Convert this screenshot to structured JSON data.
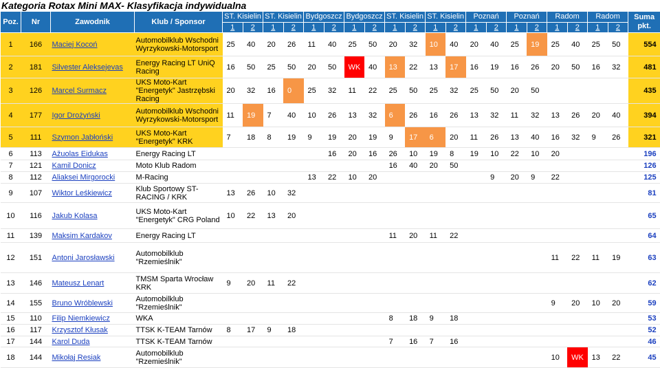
{
  "title": "Kategoria Rotax Mini MAX- Klasyfikacja indywidualna",
  "colors": {
    "header": "#1f6fb5",
    "leader": "#ffd21f",
    "orange": "#f79646",
    "red": "#ff0000",
    "link": "#1a3fbf"
  },
  "header": {
    "poz": "Poz.",
    "nr": "Nr",
    "name": "Zawodnik",
    "club": "Klub / Sponsor",
    "total": "Suma pkt.",
    "races": [
      "ST. Kisielin",
      "ST. Kisielin",
      "Bydgoszcz",
      "Bydgoszcz",
      "ST. Kisielin",
      "ST. Kisielin",
      "Poznań",
      "Poznań",
      "Radom",
      "Radom"
    ],
    "heats": [
      1,
      2,
      1,
      2,
      1,
      2,
      1,
      2,
      1,
      2,
      1,
      2,
      1,
      2,
      1,
      2,
      1,
      2,
      1,
      2
    ]
  },
  "rows": [
    {
      "poz": 1,
      "nr": 166,
      "name": "Maciej Kocoń",
      "club": "Automobilklub Wschodni Wyrzykowski-Motorsport",
      "bg": "#ffd21f",
      "results": [
        25,
        40,
        20,
        26,
        11,
        40,
        25,
        50,
        20,
        32,
        10,
        40,
        20,
        40,
        25,
        19,
        25,
        40,
        25,
        50
      ],
      "orange": [
        10,
        15
      ],
      "red": [],
      "total": 554
    },
    {
      "poz": 2,
      "nr": 181,
      "name": "Silvester Aleksejevas",
      "club": "Energy Racing LT UniQ Racing",
      "bg": "#ffd21f",
      "results": [
        16,
        50,
        25,
        50,
        20,
        50,
        "WK",
        40,
        13,
        22,
        13,
        17,
        16,
        19,
        16,
        26,
        20,
        50,
        16,
        32
      ],
      "orange": [
        8,
        11
      ],
      "red": [
        6
      ],
      "total": 481
    },
    {
      "poz": 3,
      "nr": 126,
      "name": "Marcel Surmacz",
      "club": "UKS Moto-Kart \"Energetyk\" Jastrzębski Racing",
      "bg": "#ffd21f",
      "results": [
        20,
        32,
        16,
        0,
        25,
        32,
        11,
        22,
        25,
        50,
        25,
        32,
        25,
        50,
        20,
        50,
        null,
        null,
        null,
        null
      ],
      "orange": [
        3
      ],
      "red": [],
      "total": 435
    },
    {
      "poz": 4,
      "nr": 177,
      "name": "Igor Drożyński",
      "club": "Automobilklub Wschodni Wyrzykowski-Motorsport",
      "bg": "#ffd21f",
      "results": [
        11,
        19,
        7,
        40,
        10,
        26,
        13,
        32,
        6,
        26,
        16,
        26,
        13,
        32,
        11,
        32,
        13,
        26,
        20,
        40
      ],
      "orange": [
        1,
        8
      ],
      "red": [],
      "total": 394
    },
    {
      "poz": 5,
      "nr": 111,
      "name": "Szymon Jabłoński",
      "club": "UKS Moto-Kart \"Energetyk\" KRK",
      "bg": "#ffd21f",
      "results": [
        7,
        18,
        8,
        19,
        9,
        19,
        20,
        19,
        9,
        17,
        6,
        20,
        11,
        26,
        13,
        40,
        16,
        32,
        9,
        26
      ],
      "orange": [
        9,
        10
      ],
      "red": [],
      "total": 321
    },
    {
      "poz": 6,
      "nr": 113,
      "name": "Ažuolas Eidukas",
      "club": "Energy Racing LT",
      "results": [
        null,
        null,
        null,
        null,
        null,
        16,
        20,
        16,
        26,
        10,
        19,
        8,
        19,
        10,
        22,
        10,
        20,
        null,
        null,
        null
      ],
      "orange": [],
      "red": [],
      "total": 196
    },
    {
      "poz": 7,
      "nr": 121,
      "name": "Kamil Donicz",
      "club": "Moto Klub Radom",
      "results": [
        null,
        null,
        null,
        null,
        null,
        null,
        null,
        null,
        16,
        40,
        20,
        50,
        null,
        null,
        null,
        null,
        null,
        null,
        null,
        null
      ],
      "orange": [],
      "red": [],
      "total": 126
    },
    {
      "poz": 8,
      "nr": 112,
      "name": "Aliaksei Mirgorocki",
      "club": "M-Racing",
      "results": [
        null,
        null,
        null,
        null,
        13,
        22,
        10,
        20,
        null,
        null,
        null,
        null,
        null,
        9,
        20,
        9,
        22,
        null,
        null,
        null
      ],
      "orange": [],
      "red": [],
      "total": 125
    },
    {
      "poz": 9,
      "nr": 107,
      "name": "Wiktor Leśkiewicz",
      "club": "Klub Sportowy ST-RACING / KRK",
      "results": [
        13,
        26,
        10,
        32,
        null,
        null,
        null,
        null,
        null,
        null,
        null,
        null,
        null,
        null,
        null,
        null,
        null,
        null,
        null,
        null
      ],
      "orange": [],
      "red": [],
      "total": 81
    },
    {
      "poz": 10,
      "nr": 116,
      "name": "Jakub Kolasa",
      "club": "UKS Moto-Kart \"Energetyk\" CRG Poland",
      "results": [
        10,
        22,
        13,
        20,
        null,
        null,
        null,
        null,
        null,
        null,
        null,
        null,
        null,
        null,
        null,
        null,
        null,
        null,
        null,
        null
      ],
      "orange": [],
      "red": [],
      "total": 65
    },
    {
      "poz": 11,
      "nr": 139,
      "name": "Maksim Kardakov",
      "club": "Energy Racing LT",
      "results": [
        null,
        null,
        null,
        null,
        null,
        null,
        null,
        null,
        11,
        20,
        11,
        22,
        null,
        null,
        null,
        null,
        null,
        null,
        null,
        null
      ],
      "orange": [],
      "red": [],
      "total": 64
    },
    {
      "poz": 12,
      "nr": 151,
      "name": "Antoni Jarosławski",
      "club": "Automobilklub \"Rzemieślnik\"",
      "results": [
        null,
        null,
        null,
        null,
        null,
        null,
        null,
        null,
        null,
        null,
        null,
        null,
        null,
        null,
        null,
        null,
        11,
        22,
        11,
        19
      ],
      "orange": [],
      "red": [],
      "total": 63
    },
    {
      "poz": 13,
      "nr": 146,
      "name": "Mateusz Lenart",
      "club": "TMSM Sparta Wrocław KRK",
      "results": [
        9,
        20,
        11,
        22,
        null,
        null,
        null,
        null,
        null,
        null,
        null,
        null,
        null,
        null,
        null,
        null,
        null,
        null,
        null,
        null
      ],
      "orange": [],
      "red": [],
      "total": 62
    },
    {
      "poz": 14,
      "nr": 155,
      "name": "Bruno Wróblewski",
      "club": "Automobilklub \"Rzemieślnik\"",
      "results": [
        null,
        null,
        null,
        null,
        null,
        null,
        null,
        null,
        null,
        null,
        null,
        null,
        null,
        null,
        null,
        null,
        9,
        20,
        10,
        20
      ],
      "orange": [],
      "red": [],
      "total": 59
    },
    {
      "poz": 15,
      "nr": 110,
      "name": "Filip Niemkiewicz",
      "club": "WKA",
      "results": [
        null,
        null,
        null,
        null,
        null,
        null,
        null,
        null,
        8,
        18,
        9,
        18,
        null,
        null,
        null,
        null,
        null,
        null,
        null,
        null
      ],
      "orange": [],
      "red": [],
      "total": 53
    },
    {
      "poz": 16,
      "nr": 117,
      "name": "Krzysztof Kłusak",
      "club": "TTSK K-TEAM Tarnów",
      "results": [
        8,
        17,
        9,
        18,
        null,
        null,
        null,
        null,
        null,
        null,
        null,
        null,
        null,
        null,
        null,
        null,
        null,
        null,
        null,
        null
      ],
      "orange": [],
      "red": [],
      "total": 52
    },
    {
      "poz": 17,
      "nr": 144,
      "name": "Karol Duda",
      "club": "TTSK K-TEAM Tarnów",
      "results": [
        null,
        null,
        null,
        null,
        null,
        null,
        null,
        null,
        7,
        16,
        7,
        16,
        null,
        null,
        null,
        null,
        null,
        null,
        null,
        null
      ],
      "orange": [],
      "red": [],
      "total": 46
    },
    {
      "poz": 18,
      "nr": 144,
      "name": "Mikołaj Resiak",
      "club": "Automobilklub \"Rzemieślnik\"",
      "results": [
        null,
        null,
        null,
        null,
        null,
        null,
        null,
        null,
        null,
        null,
        null,
        null,
        null,
        null,
        null,
        null,
        10,
        "WK",
        13,
        22
      ],
      "orange": [],
      "red": [
        17
      ],
      "total": 45
    }
  ]
}
